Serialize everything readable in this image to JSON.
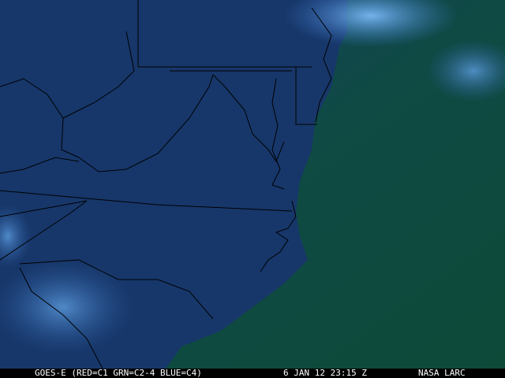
{
  "caption": {
    "sensor": "GOES-E (RED=C1 GRN=C2-4 BLUE=C4)",
    "datetime": "6 JAN 12 23:15 Z",
    "source": "NASA LARC"
  },
  "colors": {
    "land": "#17376a",
    "ocean": "#0f4a40",
    "cloud": "#5aa0e8",
    "border": "#000000",
    "caption_bg": "#000000",
    "caption_text": "#ffffff"
  }
}
